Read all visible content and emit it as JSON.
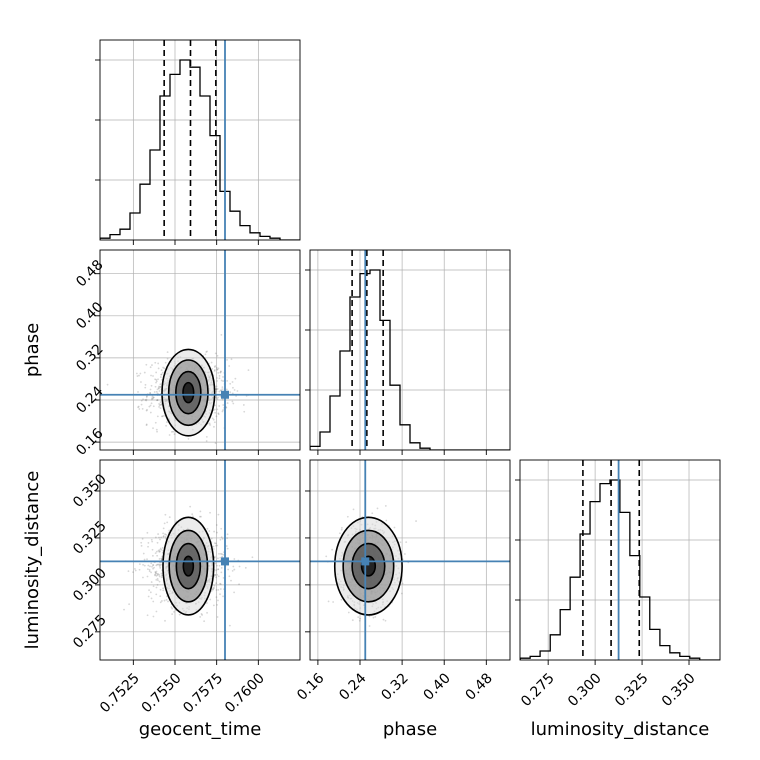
{
  "chart_data": {
    "type": "corner",
    "parameters": [
      {
        "name": "geocent_time",
        "label": "geocent_time",
        "range": [
          0.7505,
          0.7625
        ],
        "ticks": [
          0.7525,
          0.755,
          0.7575,
          0.76
        ],
        "tick_labels": [
          "0.7525",
          "0.7550",
          "0.7575",
          "0.7600"
        ],
        "truth": 0.758,
        "quantiles": [
          0.75435,
          0.75593,
          0.75745
        ]
      },
      {
        "name": "phase",
        "label": "phase",
        "range": [
          0.145,
          0.525
        ],
        "ticks": [
          0.16,
          0.24,
          0.32,
          0.4,
          0.48
        ],
        "tick_labels": [
          "0.16",
          "0.24",
          "0.32",
          "0.40",
          "0.48"
        ],
        "truth": 0.25,
        "quantiles": [
          0.225,
          0.253,
          0.284
        ]
      },
      {
        "name": "luminosity_distance",
        "label": "luminosity_distance",
        "range": [
          0.26,
          0.3665
        ],
        "ticks": [
          0.275,
          0.3,
          0.325,
          0.35
        ],
        "tick_labels": [
          "0.275",
          "0.300",
          "0.325",
          "0.350"
        ],
        "truth": 0.3125,
        "quantiles": [
          0.2935,
          0.3085,
          0.3235
        ]
      }
    ],
    "histograms": [
      {
        "param": "geocent_time",
        "edges": [
          0.7505,
          0.7511,
          0.7517,
          0.7523,
          0.7529,
          0.7535,
          0.7541,
          0.7547,
          0.7553,
          0.7559,
          0.7565,
          0.7571,
          0.7577,
          0.7583,
          0.7589,
          0.7595,
          0.7601,
          0.7607,
          0.7613,
          0.7619,
          0.7625
        ],
        "counts": [
          1,
          3,
          6,
          15,
          31,
          50,
          80,
          92,
          100,
          96,
          80,
          58,
          27,
          16,
          8,
          4,
          2,
          1,
          0,
          0
        ]
      },
      {
        "param": "phase",
        "edges": [
          0.145,
          0.164,
          0.183,
          0.202,
          0.221,
          0.24,
          0.259,
          0.278,
          0.297,
          0.316,
          0.335,
          0.354,
          0.373,
          0.392,
          0.411,
          0.43,
          0.449,
          0.468,
          0.487,
          0.506,
          0.525
        ],
        "counts": [
          2,
          10,
          30,
          55,
          85,
          98,
          100,
          72,
          36,
          14,
          4,
          1,
          0,
          0,
          0,
          0,
          0,
          0,
          0,
          0
        ]
      },
      {
        "param": "luminosity_distance",
        "edges": [
          0.2601,
          0.2654,
          0.2707,
          0.2761,
          0.2814,
          0.2867,
          0.292,
          0.2973,
          0.3026,
          0.3079,
          0.3132,
          0.3185,
          0.3238,
          0.3291,
          0.3345,
          0.3398,
          0.3451,
          0.3504,
          0.3557,
          0.361,
          0.3663
        ],
        "counts": [
          1,
          2,
          5,
          14,
          28,
          46,
          70,
          88,
          98,
          100,
          82,
          58,
          35,
          17,
          8,
          4,
          2,
          1,
          0,
          0
        ]
      }
    ],
    "pairs": [
      {
        "x": "geocent_time",
        "y": "phase",
        "center": [
          0.7558,
          0.254
        ],
        "contour_halfwidths": [
          [
            0.00032,
            0.019
          ],
          [
            0.00075,
            0.04
          ],
          [
            0.00118,
            0.062
          ],
          [
            0.00158,
            0.082
          ]
        ],
        "spread": [
          0.0012,
          0.032
        ]
      },
      {
        "x": "geocent_time",
        "y": "luminosity_distance",
        "center": [
          0.7558,
          0.31
        ],
        "contour_halfwidths": [
          [
            0.0003,
            0.0052
          ],
          [
            0.00072,
            0.012
          ],
          [
            0.00115,
            0.019
          ],
          [
            0.00152,
            0.026
          ]
        ],
        "spread": [
          0.0012,
          0.011
        ]
      },
      {
        "x": "phase",
        "y": "luminosity_distance",
        "center": [
          0.256,
          0.31
        ],
        "contour_halfwidths": [
          [
            0.013,
            0.0052
          ],
          [
            0.031,
            0.012
          ],
          [
            0.048,
            0.019
          ],
          [
            0.064,
            0.026
          ]
        ],
        "spread": [
          0.025,
          0.011
        ]
      }
    ],
    "truth_color": "#4682b4"
  }
}
